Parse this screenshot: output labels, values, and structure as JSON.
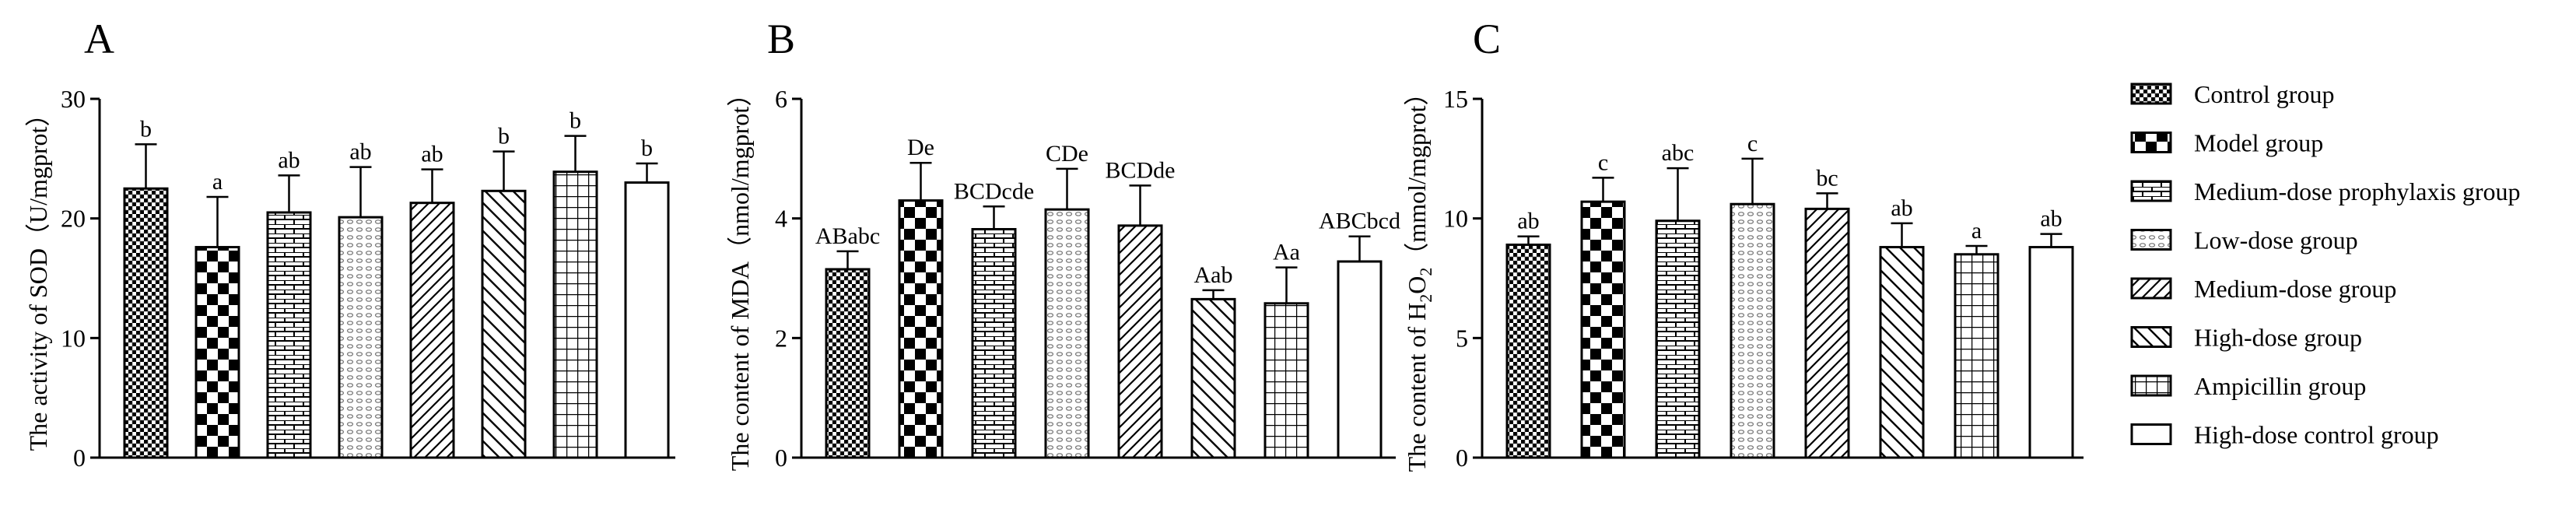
{
  "chart_data": [
    {
      "type": "bar",
      "panel": "A",
      "ylabel": "The activity of SOD（U/mgprot）",
      "ylim": [
        0,
        30
      ],
      "yticks": [
        0,
        10,
        20,
        30
      ],
      "categories": [
        "Control group",
        "Model group",
        "Medium-dose prophylaxis group",
        "Low-dose group",
        "Medium-dose group",
        "High-dose group",
        "Ampicillin group",
        "High-dose control group"
      ],
      "values": [
        22.5,
        17.6,
        20.5,
        20.1,
        21.3,
        22.3,
        23.9,
        23.0
      ],
      "errors": [
        3.7,
        4.2,
        3.1,
        4.2,
        2.8,
        3.3,
        3.0,
        1.6
      ],
      "labels": [
        "b",
        "a",
        "ab",
        "ab",
        "ab",
        "b",
        "b",
        "b"
      ]
    },
    {
      "type": "bar",
      "panel": "B",
      "ylabel": "The content of MDA（nmol/mgprot）",
      "ylim": [
        0,
        6
      ],
      "yticks": [
        0,
        2,
        4,
        6
      ],
      "categories": [
        "Control group",
        "Model group",
        "Medium-dose prophylaxis group",
        "Low-dose group",
        "Medium-dose group",
        "High-dose group",
        "Ampicillin group",
        "High-dose control group"
      ],
      "values": [
        3.15,
        4.3,
        3.82,
        4.15,
        3.88,
        2.65,
        2.58,
        3.28
      ],
      "errors": [
        0.3,
        0.63,
        0.38,
        0.68,
        0.67,
        0.15,
        0.6,
        0.42
      ],
      "labels": [
        "ABabc",
        "De",
        "BCDcde",
        "CDe",
        "BCDde",
        "Aab",
        "Aa",
        "ABCbcd"
      ]
    },
    {
      "type": "bar",
      "panel": "C",
      "ylabel_prefix": "The content of H",
      "ylabel_sub1": "2",
      "ylabel_mid": "O",
      "ylabel_sub2": "2",
      "ylabel_suffix": "（mmol/mgprot）",
      "ylim": [
        0,
        15
      ],
      "yticks": [
        0,
        5,
        10,
        15
      ],
      "categories": [
        "Control group",
        "Model group",
        "Medium-dose prophylaxis group",
        "Low-dose group",
        "Medium-dose group",
        "High-dose group",
        "Ampicillin group",
        "High-dose control group"
      ],
      "values": [
        8.9,
        10.7,
        9.9,
        10.6,
        10.4,
        8.8,
        8.5,
        8.8
      ],
      "errors": [
        0.35,
        1.0,
        2.2,
        1.9,
        0.65,
        1.0,
        0.35,
        0.55
      ],
      "labels": [
        "ab",
        "c",
        "abc",
        "c",
        "bc",
        "ab",
        "a",
        "ab"
      ]
    }
  ],
  "legend": [
    {
      "label": "Control group",
      "pattern": "grid"
    },
    {
      "label": "Model group",
      "pattern": "checker"
    },
    {
      "label": "Medium-dose prophylaxis group",
      "pattern": "brick"
    },
    {
      "label": "Low-dose group",
      "pattern": "dots"
    },
    {
      "label": "Medium-dose group",
      "pattern": "diag"
    },
    {
      "label": "High-dose group",
      "pattern": "anti"
    },
    {
      "label": "Ampicillin group",
      "pattern": "squares"
    },
    {
      "label": "High-dose control group",
      "pattern": "white"
    }
  ],
  "panel_letters": [
    "A",
    "B",
    "C"
  ]
}
